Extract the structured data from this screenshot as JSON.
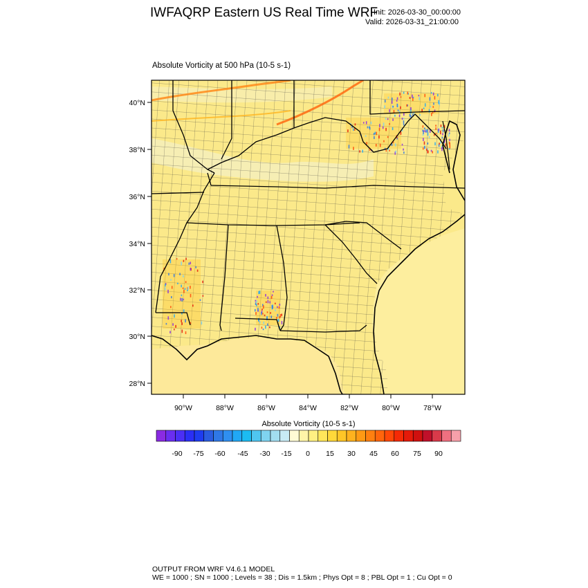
{
  "header": {
    "title": "IWFAQRP Eastern US Real Time WRF",
    "init": "Init: 2026-03-30_00:00:00",
    "valid": "Valid: 2026-03-31_21:00:00"
  },
  "map": {
    "subtitle": "Absolute Vorticity at 500 hPa   (10-5 s-1)",
    "lat_labels": [
      "40°N",
      "38°N",
      "36°N",
      "34°N",
      "32°N",
      "30°N",
      "28°N"
    ],
    "lon_labels": [
      "90°W",
      "88°W",
      "86°W",
      "84°W",
      "82°W",
      "80°W",
      "78°W"
    ],
    "region": "Southeastern United States",
    "colors": {
      "background_field": "#fbe98a",
      "ocean_field": "#fdeea0",
      "state_border": "#000000",
      "county_border": "#3a3a3a"
    }
  },
  "colorbar": {
    "title": "Absolute Vorticity  (10-5 s-1)",
    "labels": [
      "-90",
      "-75",
      "-60",
      "-45",
      "-30",
      "-15",
      "0",
      "15",
      "30",
      "45",
      "60",
      "75",
      "90"
    ],
    "colors": [
      "#8a2be2",
      "#6a2ef0",
      "#4b2ff5",
      "#2a2ff5",
      "#1e3cf0",
      "#2a5ce0",
      "#2f78e6",
      "#2f8ff0",
      "#21a8f5",
      "#1cbcf2",
      "#4fc6f0",
      "#7fd3f0",
      "#a2ddf0",
      "#c8ebf5",
      "#fffbd5",
      "#fff5a8",
      "#fff082",
      "#ffe65a",
      "#ffd83a",
      "#ffc627",
      "#ffb21e",
      "#ff9a14",
      "#ff8010",
      "#ff650c",
      "#ff4808",
      "#f52a06",
      "#e51a0a",
      "#d0100f",
      "#c0102a",
      "#d83a4a",
      "#ef7080",
      "#f7a0aa"
    ]
  },
  "footer": {
    "line1": "OUTPUT FROM WRF V4.6.1 MODEL",
    "line2": "WE = 1000 ; SN = 1000 ; Levels = 38 ; Dis = 1.5km ; Phys Opt = 8 ; PBL Opt = 1 ; Cu Opt = 0"
  }
}
